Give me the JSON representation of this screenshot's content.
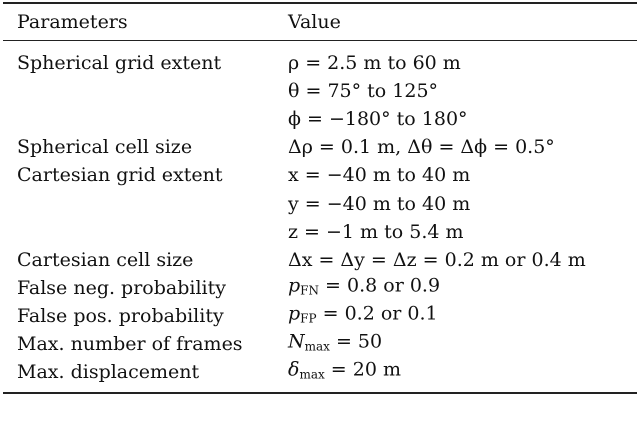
{
  "table": {
    "header": [
      "Parameters",
      "Value"
    ],
    "rows": [
      {
        "parameter": "Spherical grid extent",
        "values": [
          "ρ = 2.5 m to 60 m",
          "θ = 75° to 125°",
          "ϕ = −180° to 180°"
        ]
      },
      {
        "parameter": "Spherical cell size",
        "values": [
          "Δρ = 0.1 m,  Δθ = Δϕ = 0.5°"
        ]
      },
      {
        "parameter": "Cartesian grid extent",
        "values": [
          "x = −40 m to 40 m",
          "y = −40 m to 40 m",
          "z = −1 m to 5.4 m"
        ]
      },
      {
        "parameter": "Cartesian cell size",
        "values": [
          "Δx = Δy = Δz = 0.2 m or 0.4 m"
        ]
      },
      {
        "parameter": "False neg. probability",
        "values": [
          {
            "base": "p",
            "sub": "FN",
            "rest": " = 0.8 or 0.9"
          }
        ]
      },
      {
        "parameter": "False pos. probability",
        "values": [
          {
            "base": "p",
            "sub": "FP",
            "rest": " = 0.2 or 0.1"
          }
        ]
      },
      {
        "parameter": "Max. number of frames",
        "values": [
          {
            "base": "N",
            "sub": "max",
            "rest": " = 50"
          }
        ]
      },
      {
        "parameter": "Max. displacement",
        "values": [
          {
            "base": "δ",
            "sub": "max",
            "rest": " = 20 m"
          }
        ]
      }
    ]
  }
}
